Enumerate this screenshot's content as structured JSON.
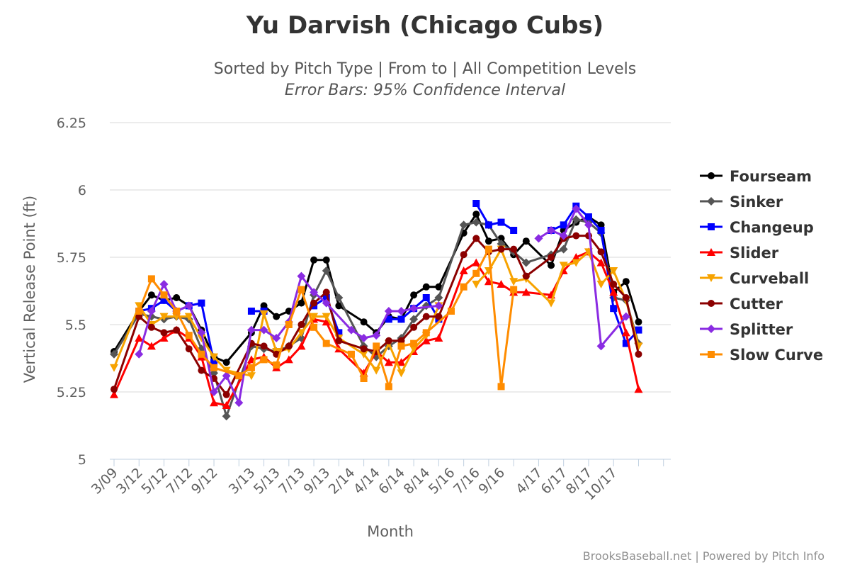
{
  "chart_data": {
    "type": "line",
    "title": "Yu Darvish (Chicago Cubs)",
    "subtitle": "Sorted by Pitch Type | From to | All Competition Levels",
    "subtitle2": "Error Bars: 95% Confidence Interval",
    "xlabel": "Month",
    "ylabel": "Vertical Release Point (ft)",
    "credit": "BrooksBaseball.net | Powered by Pitch Info",
    "ylim": [
      5,
      6.25
    ],
    "yticks": [
      5,
      5.25,
      5.5,
      5.75,
      6,
      6.25
    ],
    "ytick_labels": [
      "5",
      "5.25",
      "5.5",
      "5.75",
      "6",
      "6.25"
    ],
    "grid": true,
    "legend_position": "right",
    "xcount": 46,
    "x_tick_labels": [
      {
        "i": 0,
        "label": "3/09"
      },
      {
        "i": 2,
        "label": "3/12"
      },
      {
        "i": 4,
        "label": "5/12"
      },
      {
        "i": 6,
        "label": "7/12"
      },
      {
        "i": 8,
        "label": "9/12"
      },
      {
        "i": 11,
        "label": "3/13"
      },
      {
        "i": 13,
        "label": "5/13"
      },
      {
        "i": 15,
        "label": "7/13"
      },
      {
        "i": 17,
        "label": "9/13"
      },
      {
        "i": 19,
        "label": "2/14"
      },
      {
        "i": 21,
        "label": "4/14"
      },
      {
        "i": 23,
        "label": "6/14"
      },
      {
        "i": 25,
        "label": "8/14"
      },
      {
        "i": 27,
        "label": "5/16"
      },
      {
        "i": 29,
        "label": "7/16"
      },
      {
        "i": 31,
        "label": "9/16"
      },
      {
        "i": 34,
        "label": "4/17"
      },
      {
        "i": 36,
        "label": "6/17"
      },
      {
        "i": 38,
        "label": "8/17"
      },
      {
        "i": 40,
        "label": "10/17"
      }
    ],
    "series": [
      {
        "name": "Fourseam",
        "color": "#000000",
        "marker": "circle",
        "points": [
          [
            0,
            5.4
          ],
          [
            2,
            5.55
          ],
          [
            3,
            5.61
          ],
          [
            4,
            5.59
          ],
          [
            5,
            5.6
          ],
          [
            6,
            5.57
          ],
          [
            7,
            5.48
          ],
          [
            8,
            5.38
          ],
          [
            9,
            5.36
          ],
          [
            11,
            5.47
          ],
          [
            12,
            5.57
          ],
          [
            13,
            5.53
          ],
          [
            14,
            5.55
          ],
          [
            15,
            5.58
          ],
          [
            16,
            5.74
          ],
          [
            17,
            5.74
          ],
          [
            18,
            5.57
          ],
          [
            20,
            5.51
          ],
          [
            21,
            5.47
          ],
          [
            22,
            5.53
          ],
          [
            23,
            5.52
          ],
          [
            24,
            5.61
          ],
          [
            25,
            5.64
          ],
          [
            26,
            5.64
          ],
          [
            28,
            5.84
          ],
          [
            29,
            5.91
          ],
          [
            30,
            5.81
          ],
          [
            31,
            5.82
          ],
          [
            32,
            5.76
          ],
          [
            33,
            5.81
          ],
          [
            35,
            5.72
          ],
          [
            36,
            5.85
          ],
          [
            37,
            5.88
          ],
          [
            38,
            5.9
          ],
          [
            39,
            5.87
          ],
          [
            40,
            5.62
          ],
          [
            41,
            5.66
          ],
          [
            42,
            5.51
          ]
        ]
      },
      {
        "name": "Sinker",
        "color": "#555555",
        "marker": "diamond",
        "points": [
          [
            0,
            5.39
          ],
          [
            2,
            5.54
          ],
          [
            3,
            5.53
          ],
          [
            4,
            5.52
          ],
          [
            5,
            5.53
          ],
          [
            6,
            5.52
          ],
          [
            7,
            5.41
          ],
          [
            8,
            5.32
          ],
          [
            9,
            5.16
          ],
          [
            11,
            5.42
          ],
          [
            12,
            5.41
          ],
          [
            13,
            5.4
          ],
          [
            14,
            5.42
          ],
          [
            15,
            5.45
          ],
          [
            16,
            5.61
          ],
          [
            17,
            5.7
          ],
          [
            18,
            5.6
          ],
          [
            20,
            5.42
          ],
          [
            21,
            5.38
          ],
          [
            22,
            5.42
          ],
          [
            23,
            5.45
          ],
          [
            24,
            5.52
          ],
          [
            25,
            5.57
          ],
          [
            26,
            5.6
          ],
          [
            28,
            5.87
          ],
          [
            29,
            5.88
          ],
          [
            30,
            5.87
          ],
          [
            31,
            5.8
          ],
          [
            32,
            5.77
          ],
          [
            33,
            5.73
          ],
          [
            35,
            5.76
          ],
          [
            36,
            5.78
          ],
          [
            37,
            5.89
          ],
          [
            38,
            5.88
          ],
          [
            39,
            5.84
          ],
          [
            40,
            5.6
          ],
          [
            41,
            5.59
          ],
          [
            42,
            5.43
          ]
        ]
      },
      {
        "name": "Changeup",
        "color": "#0000ff",
        "marker": "square",
        "points": [
          [
            2,
            5.55
          ],
          [
            3,
            5.56
          ],
          [
            4,
            5.59
          ],
          [
            5,
            5.55
          ],
          [
            6,
            5.57
          ],
          [
            7,
            5.58
          ],
          [
            8,
            5.36
          ],
          [
            11,
            5.55
          ],
          [
            12,
            5.55
          ],
          [
            16,
            5.57
          ],
          [
            17,
            5.6
          ],
          [
            18,
            5.47
          ],
          [
            22,
            5.52
          ],
          [
            23,
            5.52
          ],
          [
            24,
            5.56
          ],
          [
            25,
            5.6
          ],
          [
            26,
            5.52
          ],
          [
            29,
            5.95
          ],
          [
            30,
            5.87
          ],
          [
            31,
            5.88
          ],
          [
            32,
            5.85
          ],
          [
            35,
            5.85
          ],
          [
            36,
            5.87
          ],
          [
            37,
            5.94
          ],
          [
            38,
            5.9
          ],
          [
            39,
            5.85
          ],
          [
            40,
            5.56
          ],
          [
            41,
            5.43
          ],
          [
            42,
            5.48
          ]
        ]
      },
      {
        "name": "Slider",
        "color": "#ff0000",
        "marker": "triangle",
        "points": [
          [
            0,
            5.24
          ],
          [
            2,
            5.45
          ],
          [
            3,
            5.42
          ],
          [
            4,
            5.45
          ],
          [
            5,
            5.48
          ],
          [
            6,
            5.45
          ],
          [
            7,
            5.38
          ],
          [
            8,
            5.21
          ],
          [
            9,
            5.2
          ],
          [
            11,
            5.37
          ],
          [
            12,
            5.38
          ],
          [
            13,
            5.34
          ],
          [
            14,
            5.37
          ],
          [
            15,
            5.42
          ],
          [
            16,
            5.52
          ],
          [
            17,
            5.51
          ],
          [
            18,
            5.41
          ],
          [
            20,
            5.32
          ],
          [
            21,
            5.4
          ],
          [
            22,
            5.36
          ],
          [
            23,
            5.36
          ],
          [
            24,
            5.4
          ],
          [
            25,
            5.44
          ],
          [
            26,
            5.45
          ],
          [
            28,
            5.7
          ],
          [
            29,
            5.73
          ],
          [
            30,
            5.66
          ],
          [
            31,
            5.65
          ],
          [
            32,
            5.62
          ],
          [
            33,
            5.62
          ],
          [
            35,
            5.61
          ],
          [
            36,
            5.7
          ],
          [
            37,
            5.75
          ],
          [
            38,
            5.77
          ],
          [
            39,
            5.73
          ],
          [
            40,
            5.62
          ],
          [
            41,
            5.47
          ],
          [
            42,
            5.26
          ]
        ]
      },
      {
        "name": "Curveball",
        "color": "#f7a300",
        "marker": "triangle-down",
        "points": [
          [
            0,
            5.34
          ],
          [
            2,
            5.57
          ],
          [
            3,
            5.5
          ],
          [
            4,
            5.53
          ],
          [
            5,
            5.53
          ],
          [
            6,
            5.53
          ],
          [
            7,
            5.45
          ],
          [
            8,
            5.38
          ],
          [
            9,
            5.33
          ],
          [
            11,
            5.31
          ],
          [
            12,
            5.54
          ],
          [
            13,
            5.4
          ],
          [
            14,
            5.41
          ],
          [
            15,
            5.47
          ],
          [
            16,
            5.53
          ],
          [
            17,
            5.53
          ],
          [
            18,
            5.45
          ],
          [
            20,
            5.39
          ],
          [
            21,
            5.33
          ],
          [
            22,
            5.43
          ],
          [
            23,
            5.32
          ],
          [
            24,
            5.41
          ],
          [
            25,
            5.46
          ],
          [
            26,
            5.57
          ],
          [
            29,
            5.65
          ],
          [
            30,
            5.7
          ],
          [
            31,
            5.78
          ],
          [
            32,
            5.66
          ],
          [
            33,
            5.67
          ],
          [
            35,
            5.58
          ],
          [
            36,
            5.72
          ],
          [
            37,
            5.73
          ],
          [
            38,
            5.77
          ],
          [
            39,
            5.65
          ],
          [
            40,
            5.7
          ],
          [
            41,
            5.59
          ],
          [
            42,
            5.42
          ]
        ]
      },
      {
        "name": "Cutter",
        "color": "#8b0000",
        "marker": "circle",
        "points": [
          [
            0,
            5.26
          ],
          [
            2,
            5.53
          ],
          [
            3,
            5.49
          ],
          [
            4,
            5.47
          ],
          [
            5,
            5.48
          ],
          [
            6,
            5.41
          ],
          [
            7,
            5.33
          ],
          [
            8,
            5.3
          ],
          [
            9,
            5.24
          ],
          [
            11,
            5.43
          ],
          [
            12,
            5.42
          ],
          [
            13,
            5.39
          ],
          [
            14,
            5.42
          ],
          [
            15,
            5.5
          ],
          [
            16,
            5.58
          ],
          [
            17,
            5.62
          ],
          [
            18,
            5.44
          ],
          [
            20,
            5.41
          ],
          [
            21,
            5.4
          ],
          [
            22,
            5.44
          ],
          [
            23,
            5.44
          ],
          [
            24,
            5.49
          ],
          [
            25,
            5.53
          ],
          [
            26,
            5.53
          ],
          [
            28,
            5.76
          ],
          [
            29,
            5.82
          ],
          [
            30,
            5.77
          ],
          [
            31,
            5.78
          ],
          [
            32,
            5.78
          ],
          [
            33,
            5.68
          ],
          [
            35,
            5.75
          ],
          [
            36,
            5.82
          ],
          [
            37,
            5.83
          ],
          [
            38,
            5.83
          ],
          [
            39,
            5.77
          ],
          [
            40,
            5.65
          ],
          [
            41,
            5.6
          ],
          [
            42,
            5.39
          ]
        ]
      },
      {
        "name": "Splitter",
        "color": "#8a2be2",
        "marker": "diamond",
        "points": [
          [
            2,
            5.39
          ],
          [
            3,
            5.55
          ],
          [
            4,
            5.65
          ],
          [
            5,
            5.55
          ],
          [
            6,
            5.57
          ],
          [
            7,
            5.47
          ],
          [
            8,
            5.25
          ],
          [
            9,
            5.31
          ],
          [
            10,
            5.21
          ],
          [
            11,
            5.48
          ],
          [
            12,
            5.48
          ],
          [
            13,
            5.45
          ],
          [
            14,
            5.51
          ],
          [
            15,
            5.68
          ],
          [
            16,
            5.62
          ],
          [
            17,
            5.58
          ],
          [
            19,
            5.48
          ],
          [
            20,
            5.45
          ],
          [
            21,
            5.46
          ],
          [
            22,
            5.55
          ],
          [
            23,
            5.55
          ],
          [
            24,
            5.56
          ],
          [
            26,
            5.57
          ],
          [
            34,
            5.82
          ],
          [
            35,
            5.85
          ],
          [
            36,
            5.83
          ],
          [
            37,
            5.93
          ],
          [
            38,
            5.87
          ],
          [
            39,
            5.42
          ],
          [
            41,
            5.53
          ]
        ]
      },
      {
        "name": "Slow Curve",
        "color": "#ff8c00",
        "marker": "square",
        "points": [
          [
            2,
            5.55
          ],
          [
            3,
            5.67
          ],
          [
            4,
            5.61
          ],
          [
            5,
            5.55
          ],
          [
            6,
            5.46
          ],
          [
            7,
            5.39
          ],
          [
            8,
            5.34
          ],
          [
            10,
            5.31
          ],
          [
            11,
            5.34
          ],
          [
            12,
            5.37
          ],
          [
            13,
            5.35
          ],
          [
            14,
            5.5
          ],
          [
            15,
            5.63
          ],
          [
            16,
            5.49
          ],
          [
            17,
            5.43
          ],
          [
            19,
            5.39
          ],
          [
            20,
            5.3
          ],
          [
            21,
            5.42
          ],
          [
            22,
            5.27
          ],
          [
            23,
            5.42
          ],
          [
            24,
            5.43
          ],
          [
            25,
            5.47
          ],
          [
            27,
            5.55
          ],
          [
            28,
            5.64
          ],
          [
            29,
            5.69
          ],
          [
            30,
            5.78
          ],
          [
            31,
            5.27
          ],
          [
            32,
            5.63
          ]
        ]
      }
    ]
  }
}
